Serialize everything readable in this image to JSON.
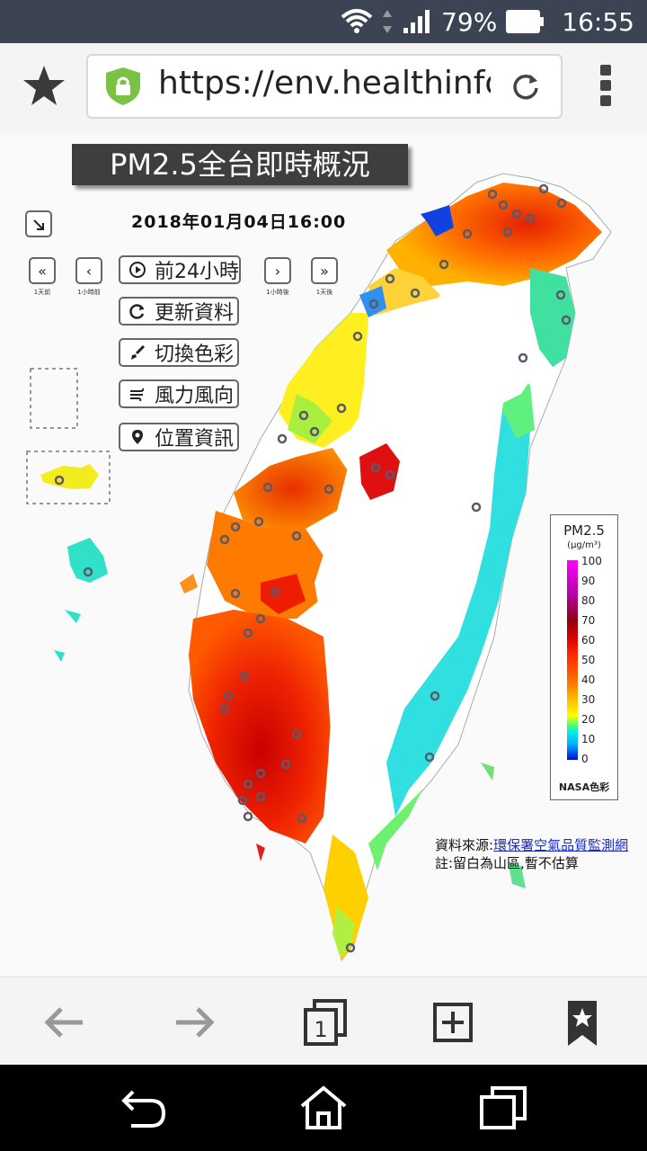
{
  "status": {
    "battery": "79%",
    "time": "16:55"
  },
  "browser": {
    "url": "https://env.healthinfo.tw"
  },
  "page": {
    "title": "PM2.5全台即時概況",
    "datetime": "2018年01月04日16:00",
    "nav": {
      "back_day_caption": "1天前",
      "back_hour_caption": "1小時前",
      "fwd_hour_caption": "1小時後",
      "fwd_day_caption": "1天後"
    },
    "buttons": {
      "prev24": "前24小時",
      "refresh": "更新資料",
      "color": "切換色彩",
      "wind": "風力風向",
      "location": "位置資訊"
    },
    "legend": {
      "title": "PM2.5",
      "unit": "(μg/m³)",
      "ticks": [
        "100",
        "90",
        "80",
        "70",
        "60",
        "50",
        "40",
        "30",
        "20",
        "10",
        "0"
      ],
      "footer": "NASA色彩"
    },
    "source": {
      "label": "資料來源:",
      "link": "環保署空氣品質監測網",
      "note": "註:留白為山區,暫不估算"
    }
  },
  "colors": {
    "statusbar": "#3c4454",
    "banner": "#3e3e3e",
    "link": "#1a2cc8",
    "lock_green": "#7cc242"
  }
}
